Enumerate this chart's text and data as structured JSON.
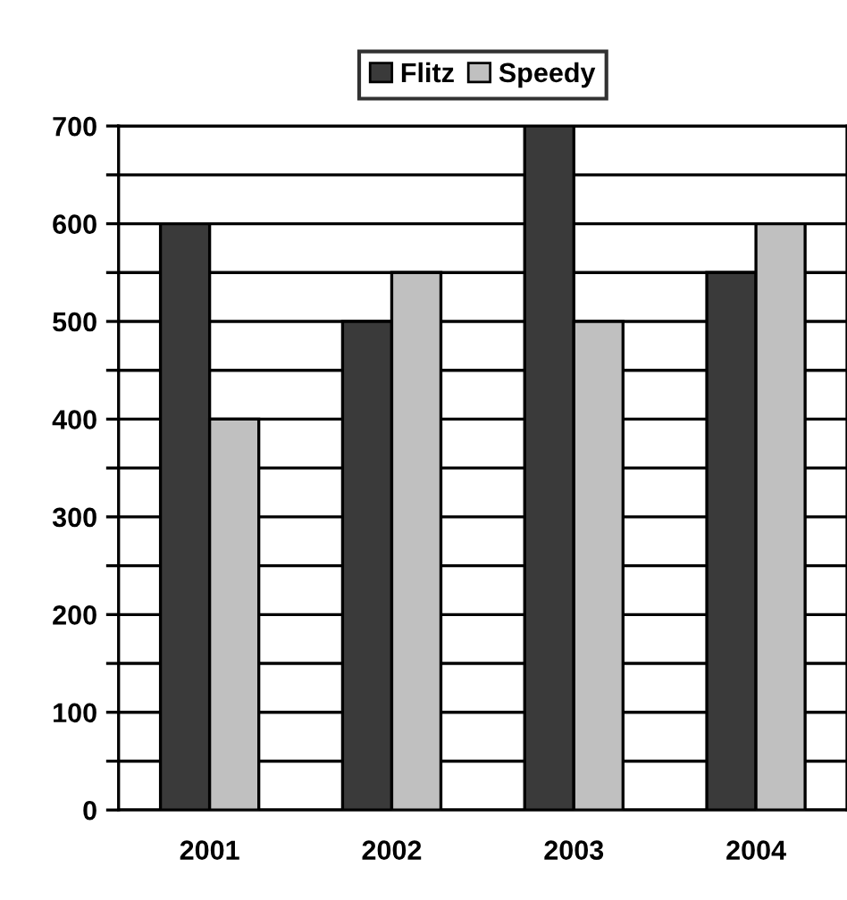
{
  "chart_data": {
    "type": "bar",
    "categories": [
      "2001",
      "2002",
      "2003",
      "2004"
    ],
    "series": [
      {
        "name": "Flitz",
        "color": "#3a3a3a",
        "values": [
          600,
          500,
          700,
          550
        ]
      },
      {
        "name": "Speedy",
        "color": "#c0c0c0",
        "values": [
          400,
          550,
          500,
          600
        ]
      }
    ],
    "ylim": [
      0,
      700
    ],
    "yticks": [
      0,
      {
        "value": 50,
        "label": null
      },
      100,
      {
        "value": 150,
        "label": null
      },
      200,
      {
        "value": 250,
        "label": null
      },
      300,
      {
        "value": 350,
        "label": null
      },
      400,
      {
        "value": 450,
        "label": null
      },
      500,
      {
        "value": 550,
        "label": null
      },
      600,
      {
        "value": 650,
        "label": null
      },
      700
    ],
    "grid": "y",
    "legend": "top"
  }
}
